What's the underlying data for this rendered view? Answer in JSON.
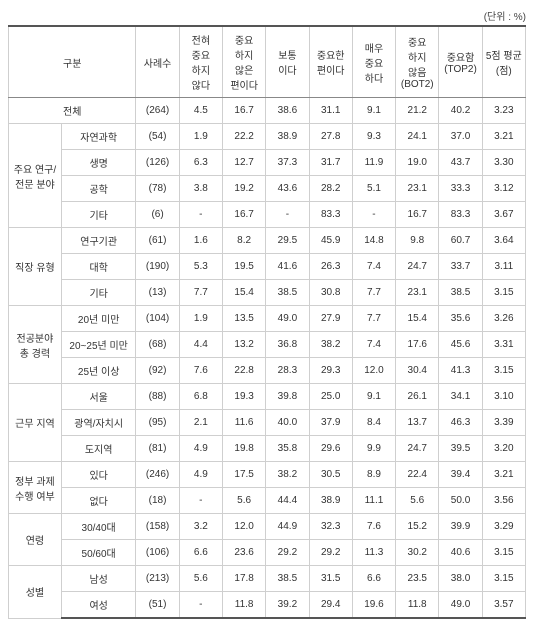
{
  "unit_label": "(단위 : %)",
  "headers": {
    "category": "구분",
    "n": "사례수",
    "c1": "전혀 중요 하지 않다",
    "c2": "중요 하지 않은 편이다",
    "c3": "보통 이다",
    "c4": "중요한 편이다",
    "c5": "매우 중요 하다",
    "bot2": "중요 하지 않음 (BOT2)",
    "top2": "중요함 (TOP2)",
    "mean": "5점 평균 (점)"
  },
  "total_label": "전체",
  "total": {
    "n": "(264)",
    "v": [
      "4.5",
      "16.7",
      "38.6",
      "31.1",
      "9.1",
      "21.2",
      "40.2",
      "3.23"
    ]
  },
  "groups": [
    {
      "label": "주요 연구/전문 분야",
      "rows": [
        {
          "label": "자연과학",
          "n": "(54)",
          "v": [
            "1.9",
            "22.2",
            "38.9",
            "27.8",
            "9.3",
            "24.1",
            "37.0",
            "3.21"
          ]
        },
        {
          "label": "생명",
          "n": "(126)",
          "v": [
            "6.3",
            "12.7",
            "37.3",
            "31.7",
            "11.9",
            "19.0",
            "43.7",
            "3.30"
          ]
        },
        {
          "label": "공학",
          "n": "(78)",
          "v": [
            "3.8",
            "19.2",
            "43.6",
            "28.2",
            "5.1",
            "23.1",
            "33.3",
            "3.12"
          ]
        },
        {
          "label": "기타",
          "n": "(6)",
          "v": [
            "-",
            "16.7",
            "-",
            "83.3",
            "-",
            "16.7",
            "83.3",
            "3.67"
          ]
        }
      ]
    },
    {
      "label": "직장 유형",
      "rows": [
        {
          "label": "연구기관",
          "n": "(61)",
          "v": [
            "1.6",
            "8.2",
            "29.5",
            "45.9",
            "14.8",
            "9.8",
            "60.7",
            "3.64"
          ]
        },
        {
          "label": "대학",
          "n": "(190)",
          "v": [
            "5.3",
            "19.5",
            "41.6",
            "26.3",
            "7.4",
            "24.7",
            "33.7",
            "3.11"
          ]
        },
        {
          "label": "기타",
          "n": "(13)",
          "v": [
            "7.7",
            "15.4",
            "38.5",
            "30.8",
            "7.7",
            "23.1",
            "38.5",
            "3.15"
          ]
        }
      ]
    },
    {
      "label": "전공분야 총 경력",
      "rows": [
        {
          "label": "20년 미만",
          "n": "(104)",
          "v": [
            "1.9",
            "13.5",
            "49.0",
            "27.9",
            "7.7",
            "15.4",
            "35.6",
            "3.26"
          ]
        },
        {
          "label": "20~25년 미만",
          "n": "(68)",
          "v": [
            "4.4",
            "13.2",
            "36.8",
            "38.2",
            "7.4",
            "17.6",
            "45.6",
            "3.31"
          ]
        },
        {
          "label": "25년 이상",
          "n": "(92)",
          "v": [
            "7.6",
            "22.8",
            "28.3",
            "29.3",
            "12.0",
            "30.4",
            "41.3",
            "3.15"
          ]
        }
      ]
    },
    {
      "label": "근무 지역",
      "rows": [
        {
          "label": "서울",
          "n": "(88)",
          "v": [
            "6.8",
            "19.3",
            "39.8",
            "25.0",
            "9.1",
            "26.1",
            "34.1",
            "3.10"
          ]
        },
        {
          "label": "광역/자치시",
          "n": "(95)",
          "v": [
            "2.1",
            "11.6",
            "40.0",
            "37.9",
            "8.4",
            "13.7",
            "46.3",
            "3.39"
          ]
        },
        {
          "label": "도지역",
          "n": "(81)",
          "v": [
            "4.9",
            "19.8",
            "35.8",
            "29.6",
            "9.9",
            "24.7",
            "39.5",
            "3.20"
          ]
        }
      ]
    },
    {
      "label": "정부 과제 수행 여부",
      "rows": [
        {
          "label": "있다",
          "n": "(246)",
          "v": [
            "4.9",
            "17.5",
            "38.2",
            "30.5",
            "8.9",
            "22.4",
            "39.4",
            "3.21"
          ]
        },
        {
          "label": "없다",
          "n": "(18)",
          "v": [
            "-",
            "5.6",
            "44.4",
            "38.9",
            "11.1",
            "5.6",
            "50.0",
            "3.56"
          ]
        }
      ]
    },
    {
      "label": "연령",
      "rows": [
        {
          "label": "30/40대",
          "n": "(158)",
          "v": [
            "3.2",
            "12.0",
            "44.9",
            "32.3",
            "7.6",
            "15.2",
            "39.9",
            "3.29"
          ]
        },
        {
          "label": "50/60대",
          "n": "(106)",
          "v": [
            "6.6",
            "23.6",
            "29.2",
            "29.2",
            "11.3",
            "30.2",
            "40.6",
            "3.15"
          ]
        }
      ]
    },
    {
      "label": "성별",
      "rows": [
        {
          "label": "남성",
          "n": "(213)",
          "v": [
            "5.6",
            "17.8",
            "38.5",
            "31.5",
            "6.6",
            "23.5",
            "38.0",
            "3.15"
          ]
        },
        {
          "label": "여성",
          "n": "(51)",
          "v": [
            "-",
            "11.8",
            "39.2",
            "29.4",
            "19.6",
            "11.8",
            "49.0",
            "3.57"
          ]
        }
      ]
    }
  ]
}
